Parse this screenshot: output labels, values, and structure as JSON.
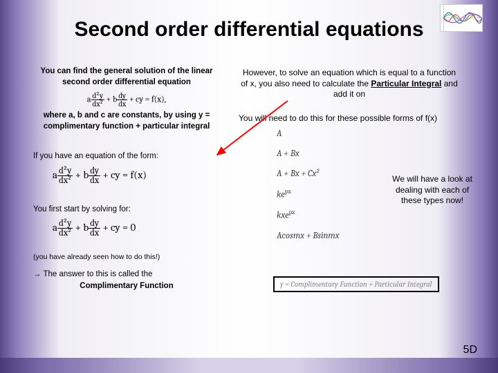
{
  "title": "Second order differential equations",
  "page_number": "5D",
  "left": {
    "para1_a": "You can find the general solution of the linear second order differential equation",
    "eq1_html": "a<span class='frac'><span class='num'>d²y</span><span class='den'>dx²</span></span> + b<span class='frac'><span class='num'>dy</span><span class='den'>dx</span></span> + cy = f(x),",
    "para1_b": "where a, b and c are constants, by using y = complimentary function + particular integral",
    "para2": "If you have an equation of the form:",
    "eq2_html": "a<span class='frac'><span class='num'>d²y</span><span class='den'>dx²</span></span> + b<span class='frac'><span class='num'>dy</span><span class='den'>dx</span></span> + cy = f(x)",
    "para3": "You first start by solving for:",
    "eq3_html": "a<span class='frac'><span class='num'>d²y</span><span class='den'>dx²</span></span> + b<span class='frac'><span class='num'>dy</span><span class='den'>dx</span></span> + cy = 0",
    "para4": "(you have already seen how to do this!)",
    "para5": "→ The answer to this is called the",
    "cf_label": "Complimentary Function"
  },
  "right": {
    "intro_before": "However, to solve an equation which is equal to a function of x, you also need to calculate the ",
    "pi_label": "Particular Integral",
    "intro_after": " and add it on",
    "second_line": "You will need to do this for these possible forms of f(x)",
    "forms": {
      "f1": "A",
      "f2": "A + Bx",
      "f3": "A + Bx + Cx²",
      "f4_html": "ke<sup>px</sup>",
      "f5_html": "kxe<sup>px</sup>",
      "f6": "Acosmx + Bsinmx"
    },
    "note": "We will have a look at dealing with each of these types now!",
    "boxed": "y = Complimentary Function + Particular Integral"
  },
  "style": {
    "title_fontsize": 30,
    "body_fontsize": 12,
    "arrow_color": "#ff0000",
    "box_border_color": "#000000",
    "gradient_colors": [
      "#5a4a8a",
      "#8878b8",
      "#f0eef5",
      "#ffffff"
    ],
    "font_comic": "Comic Sans MS",
    "font_arial": "Arial",
    "font_serif": "Cambria",
    "thumb": {
      "width": 62,
      "height": 40,
      "line_colors": [
        "#3366cc",
        "#cc3333",
        "#33aa33",
        "#9944cc"
      ]
    }
  }
}
